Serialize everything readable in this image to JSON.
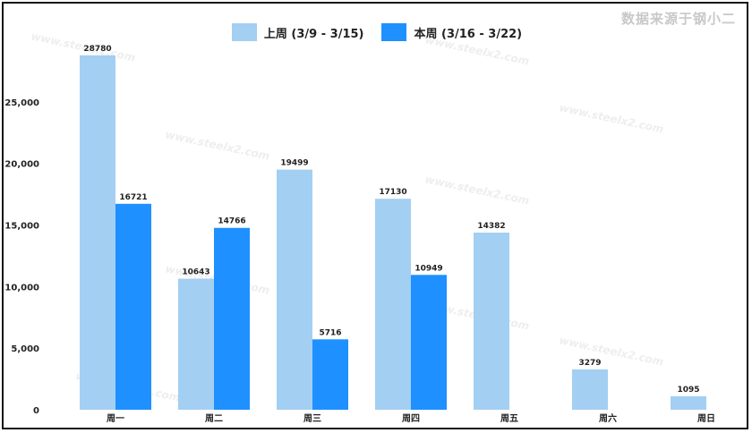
{
  "watermark_note": "数据来源于钢小二",
  "watermark": "www.steelx2.com",
  "chart_data": {
    "type": "bar",
    "categories": [
      "周一",
      "周二",
      "周三",
      "周四",
      "周五",
      "周六",
      "周日"
    ],
    "series": [
      {
        "name": "上周 (3/9 - 3/15)",
        "color": "#a3cff3",
        "values": [
          28780,
          10643,
          19499,
          17130,
          14382,
          3279,
          1095
        ]
      },
      {
        "name": "本周 (3/16 - 3/22)",
        "color": "#1e90ff",
        "values": [
          16721,
          14766,
          5716,
          10949,
          null,
          null,
          null
        ]
      }
    ],
    "yticks": [
      0,
      5000,
      10000,
      15000,
      20000,
      25000
    ],
    "ytick_labels": [
      "0",
      "5,000",
      "10,000",
      "15,000",
      "20,000",
      "25,000"
    ],
    "ylim": [
      0,
      30000
    ],
    "legend_position": "top-center",
    "grid": false
  }
}
